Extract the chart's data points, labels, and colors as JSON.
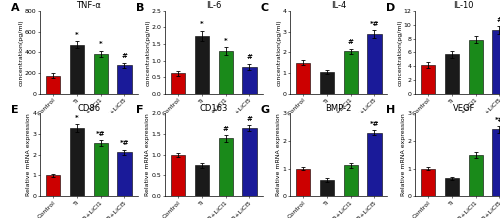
{
  "panels": [
    {
      "label": "A",
      "title": "TNF-α",
      "ylabel": "concentration(pg/ml)",
      "ylim": [
        0,
        800
      ],
      "yticks": [
        0,
        200,
        400,
        600,
        800
      ],
      "values": [
        175,
        475,
        385,
        275
      ],
      "errors": [
        25,
        35,
        30,
        25
      ],
      "sig": [
        "",
        "*",
        "*",
        "#"
      ]
    },
    {
      "label": "B",
      "title": "IL-6",
      "ylabel": "concentration(pg/ml)",
      "ylim": [
        0,
        2.5
      ],
      "yticks": [
        0.0,
        0.5,
        1.0,
        1.5,
        2.0,
        2.5
      ],
      "values": [
        0.62,
        1.75,
        1.28,
        0.82
      ],
      "errors": [
        0.08,
        0.15,
        0.12,
        0.09
      ],
      "sig": [
        "",
        "*",
        "*",
        "#"
      ]
    },
    {
      "label": "C",
      "title": "IL-4",
      "ylabel": "concentration(pg/ml)",
      "ylim": [
        0,
        4
      ],
      "yticks": [
        0,
        1,
        2,
        3,
        4
      ],
      "values": [
        1.5,
        1.05,
        2.05,
        2.88
      ],
      "errors": [
        0.12,
        0.1,
        0.12,
        0.2
      ],
      "sig": [
        "",
        "",
        "#",
        "*#"
      ]
    },
    {
      "label": "D",
      "title": "IL-10",
      "ylabel": "concentration(pg/ml)",
      "ylim": [
        0,
        12
      ],
      "yticks": [
        0,
        2,
        4,
        6,
        8,
        10,
        12
      ],
      "values": [
        4.2,
        5.7,
        7.8,
        9.2
      ],
      "errors": [
        0.4,
        0.5,
        0.5,
        0.6
      ],
      "sig": [
        "",
        "",
        "",
        "#"
      ]
    },
    {
      "label": "E",
      "title": "CD86",
      "ylabel": "Relative mRNA expression",
      "ylim": [
        0,
        4
      ],
      "yticks": [
        0,
        1,
        2,
        3,
        4
      ],
      "values": [
        1.0,
        3.3,
        2.55,
        2.12
      ],
      "errors": [
        0.06,
        0.18,
        0.15,
        0.12
      ],
      "sig": [
        "",
        "*",
        "*#",
        "*#"
      ]
    },
    {
      "label": "F",
      "title": "CD163",
      "ylabel": "Relative mRNA expression",
      "ylim": [
        0,
        2.0
      ],
      "yticks": [
        0.0,
        0.5,
        1.0,
        1.5,
        2.0
      ],
      "values": [
        1.0,
        0.75,
        1.4,
        1.65
      ],
      "errors": [
        0.05,
        0.06,
        0.08,
        0.07
      ],
      "sig": [
        "",
        "",
        "#",
        "#"
      ]
    },
    {
      "label": "G",
      "title": "BMP-2",
      "ylabel": "Relative mRNA expression",
      "ylim": [
        0,
        3
      ],
      "yticks": [
        0,
        1,
        2,
        3
      ],
      "values": [
        1.0,
        0.58,
        1.12,
        2.3
      ],
      "errors": [
        0.06,
        0.07,
        0.1,
        0.08
      ],
      "sig": [
        "",
        "",
        "",
        "*#"
      ]
    },
    {
      "label": "H",
      "title": "VEGF",
      "ylabel": "Relative mRNA expression",
      "ylim": [
        0,
        3
      ],
      "yticks": [
        0,
        1,
        2,
        3
      ],
      "values": [
        1.0,
        0.65,
        1.5,
        2.42
      ],
      "errors": [
        0.06,
        0.06,
        0.1,
        0.12
      ],
      "sig": [
        "",
        "",
        "",
        "*#"
      ]
    }
  ],
  "bar_colors": [
    "#cc0000",
    "#1a1a1a",
    "#1a8a1a",
    "#1a1a99"
  ],
  "categories": [
    "Control",
    "Ti",
    "Ti+LiCl1",
    "Ti+LiCl5"
  ],
  "background": "#ffffff",
  "panel_label_fontsize": 8,
  "title_fontsize": 6,
  "tick_fontsize": 4.5,
  "ylabel_fontsize": 4.5,
  "sig_fontsize": 5
}
